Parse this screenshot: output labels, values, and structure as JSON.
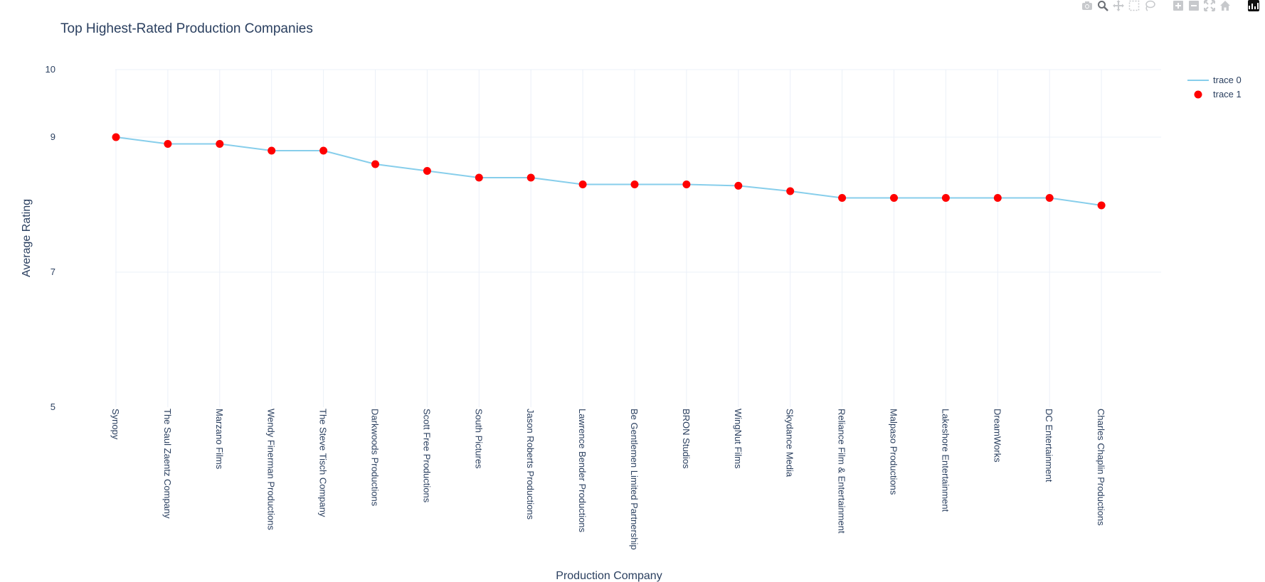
{
  "modebar": {
    "buttons": [
      "camera-icon",
      "zoom-icon",
      "pan-icon",
      "box-select-icon",
      "lasso-icon",
      "zoom-in-icon",
      "zoom-out-icon",
      "autoscale-icon",
      "reset-axes-icon",
      "plotly-logo-icon"
    ]
  },
  "colors": {
    "line": "#87CEEB",
    "marker": "#FF0000",
    "text": "#2a3f5f",
    "grid": "#EBF0F8"
  },
  "chart_data": {
    "type": "line",
    "title": "Top Highest-Rated Production Companies",
    "xlabel": "Production Company",
    "ylabel": "Average Rating",
    "ylim": [
      5,
      10
    ],
    "yticks": [
      5,
      7,
      9,
      10
    ],
    "grid": true,
    "legend_position": "top-right",
    "categories": [
      "Synopy",
      "The Saul Zaentz Company",
      "Marzano Films",
      "Wendy Finerman Productions",
      "The Steve Tisch Company",
      "Darkwoods Productions",
      "Scott Free Productions",
      "South Pictures",
      "Jason Roberts Productions",
      "Lawrence Bender Productions",
      "Be Gentlemen Limited Partnership",
      "BRON Studios",
      "WingNut Films",
      "Skydance Media",
      "Reliance Film & Entertainment",
      "Malpaso Productions",
      "Lakeshore Entertainment",
      "DreamWorks",
      "DC Entertainment",
      "Charles Chaplin Productions"
    ],
    "series": [
      {
        "name": "trace 0",
        "mode": "lines",
        "values": [
          9.0,
          8.9,
          8.9,
          8.8,
          8.8,
          8.6,
          8.5,
          8.4,
          8.4,
          8.3,
          8.3,
          8.3,
          8.28,
          8.2,
          8.1,
          8.1,
          8.1,
          8.1,
          8.1,
          7.99
        ]
      },
      {
        "name": "trace 1",
        "mode": "markers",
        "values": [
          9.0,
          8.9,
          8.9,
          8.8,
          8.8,
          8.6,
          8.5,
          8.4,
          8.4,
          8.3,
          8.3,
          8.3,
          8.28,
          8.2,
          8.1,
          8.1,
          8.1,
          8.1,
          8.1,
          7.99
        ]
      }
    ]
  }
}
